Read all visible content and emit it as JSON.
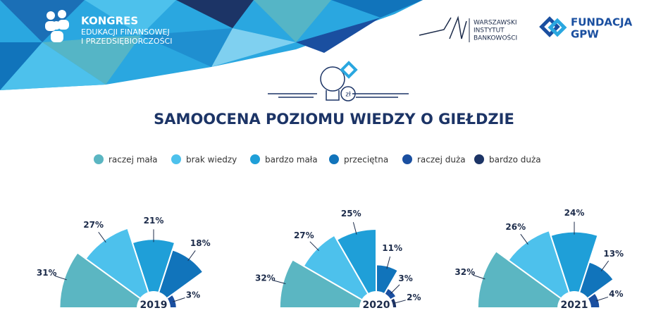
{
  "header": {
    "kongres": "KONGRES",
    "line2": "EDUKACJI FINANSOWEJ",
    "line3": "I PRZEDSIĘBIORCZOŚCI",
    "wib": [
      "WARSZAWSKI",
      "INSTYTUT",
      "BANKOWOŚCI"
    ],
    "fundacja": [
      "FUNDACJA",
      "GPW"
    ],
    "icon_text": "zł"
  },
  "title": "SAMOOCENA POZIOMU WIEDZY O GIEŁDZIE",
  "chart_data": [
    {
      "type": "polar",
      "title": "2019",
      "categories": [
        "raczej mała",
        "brak wiedzy",
        "bardzo mała",
        "przeciętna",
        "raczej duża",
        "bardzo duża"
      ],
      "colors": [
        "#5bb6c2",
        "#4dc1ec",
        "#1f9fd8",
        "#1174bb",
        "#1a4fa0",
        "#1c3466"
      ],
      "values": [
        31,
        27,
        21,
        18,
        3,
        null
      ],
      "value_labels": [
        "31%",
        "27%",
        "21%",
        "18%",
        "3%",
        null
      ]
    },
    {
      "type": "polar",
      "title": "2020",
      "categories": [
        "raczej mała",
        "brak wiedzy",
        "bardzo mała",
        "przeciętna",
        "raczej duża",
        "bardzo duża"
      ],
      "colors": [
        "#5bb6c2",
        "#4dc1ec",
        "#1f9fd8",
        "#1174bb",
        "#1a4fa0",
        "#1c3466"
      ],
      "values": [
        32,
        27,
        25,
        11,
        3,
        2
      ],
      "value_labels": [
        "32%",
        "27%",
        "25%",
        "11%",
        "3%",
        "2%"
      ]
    },
    {
      "type": "polar",
      "title": "2021",
      "categories": [
        "raczej mała",
        "brak wiedzy",
        "bardzo mała",
        "przeciętna",
        "raczej duża",
        "bardzo duża"
      ],
      "colors": [
        "#5bb6c2",
        "#4dc1ec",
        "#1f9fd8",
        "#1174bb",
        "#1a4fa0",
        "#1c3466"
      ],
      "values": [
        32,
        26,
        24,
        13,
        4,
        null
      ],
      "value_labels": [
        "32%",
        "26%",
        "24%",
        "13%",
        "4%",
        null
      ]
    }
  ]
}
